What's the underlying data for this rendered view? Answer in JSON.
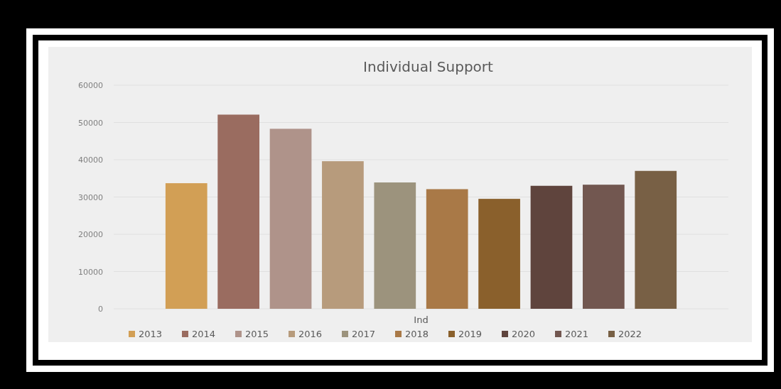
{
  "chart_data": {
    "type": "bar",
    "title": "Individual Support",
    "categories": [
      "Ind"
    ],
    "series": [
      {
        "name": "2013",
        "color": "#d29f55",
        "values": [
          33700
        ]
      },
      {
        "name": "2014",
        "color": "#9a6c60",
        "values": [
          52100
        ]
      },
      {
        "name": "2015",
        "color": "#af938a",
        "values": [
          48300
        ]
      },
      {
        "name": "2016",
        "color": "#b79b7c",
        "values": [
          39600
        ]
      },
      {
        "name": "2017",
        "color": "#9c937d",
        "values": [
          33900
        ]
      },
      {
        "name": "2018",
        "color": "#a97947",
        "values": [
          32100
        ]
      },
      {
        "name": "2019",
        "color": "#8a602c",
        "values": [
          29500
        ]
      },
      {
        "name": "2020",
        "color": "#5f443d",
        "values": [
          33000
        ]
      },
      {
        "name": "2021",
        "color": "#725750",
        "values": [
          33300
        ]
      },
      {
        "name": "2022",
        "color": "#786045",
        "values": [
          37000
        ]
      }
    ],
    "ylim": [
      0,
      60000
    ],
    "yticks": [
      0,
      10000,
      20000,
      30000,
      40000,
      50000,
      60000
    ],
    "grid": "y",
    "legend": "bottom"
  }
}
